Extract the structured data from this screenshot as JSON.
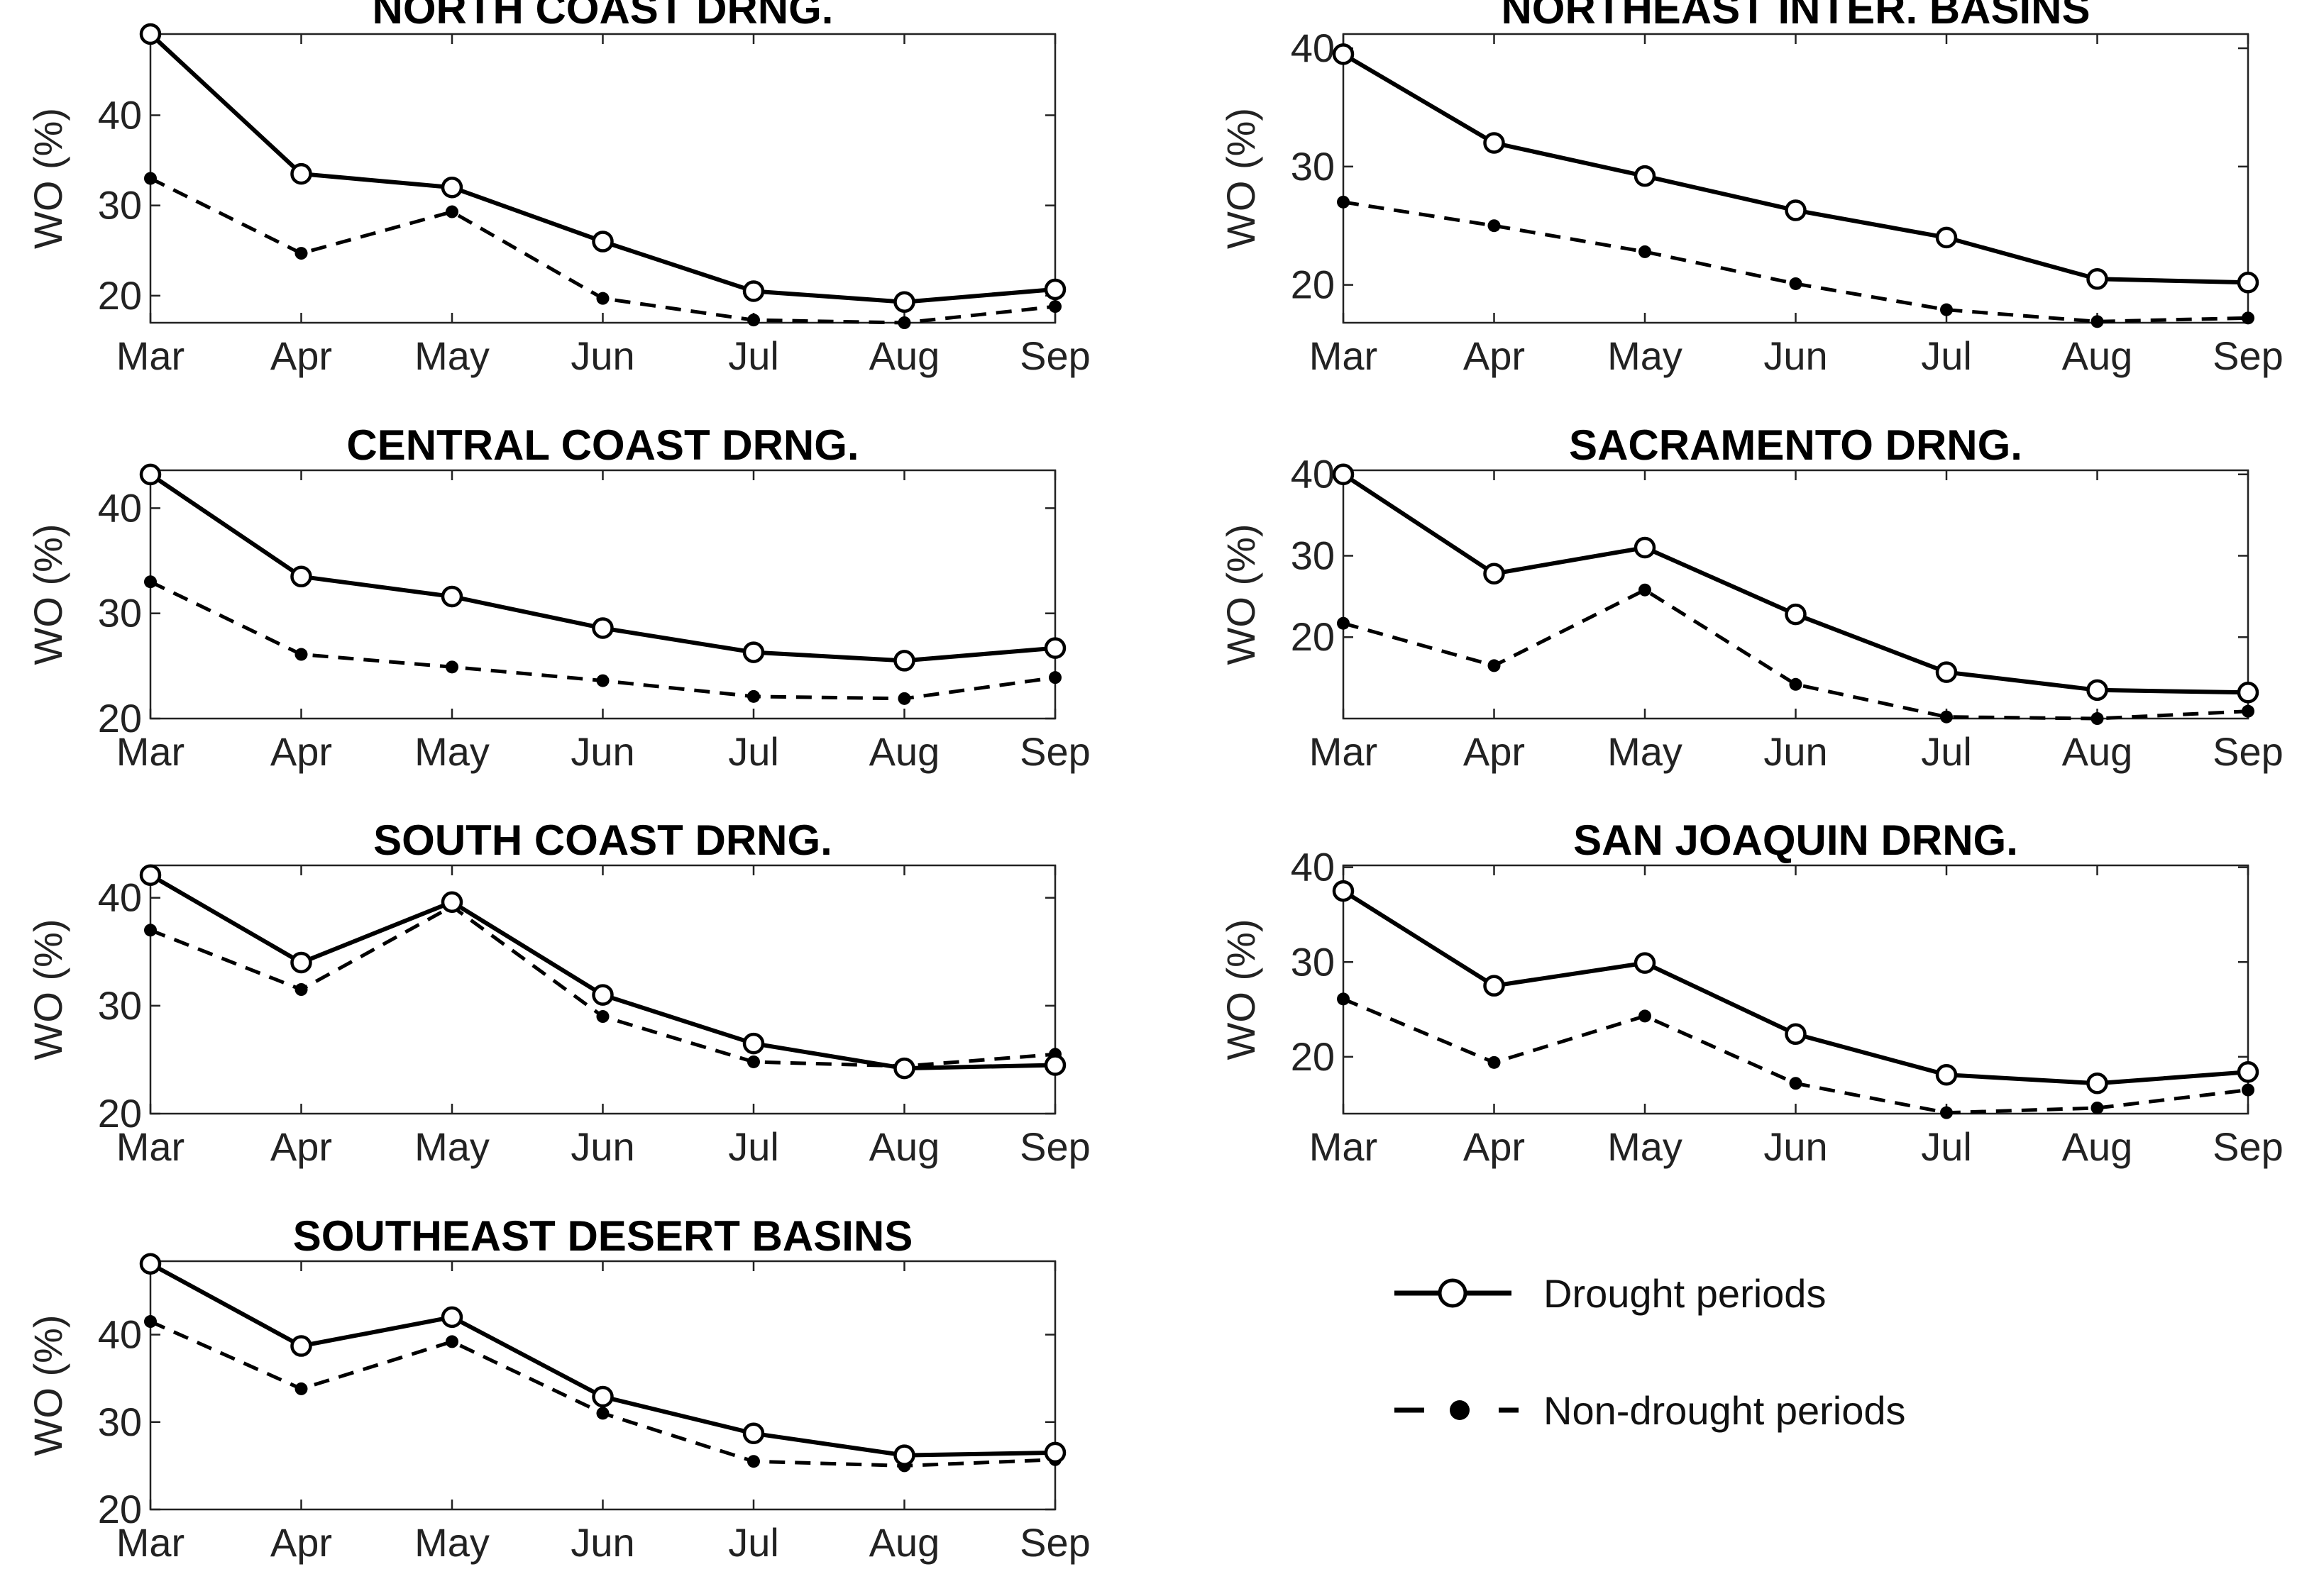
{
  "chart_data": [
    {
      "type": "line",
      "title": "NORTH COAST DRNG.",
      "categories": [
        "Mar",
        "Apr",
        "May",
        "Jun",
        "Jul",
        "Aug",
        "Sep"
      ],
      "ylabel": "WO (%)",
      "ylim": [
        17,
        49
      ],
      "yticks": [
        20,
        30,
        40
      ],
      "series": [
        {
          "name": "Drought periods",
          "values": [
            49,
            33.5,
            32,
            26,
            20.5,
            19.3,
            20.7
          ]
        },
        {
          "name": "Non-drought periods",
          "values": [
            33,
            24.7,
            29.3,
            19.7,
            17.3,
            17,
            18.8
          ]
        }
      ]
    },
    {
      "type": "line",
      "title": "NORTHEAST INTER. BASINS",
      "categories": [
        "Mar",
        "Apr",
        "May",
        "Jun",
        "Jul",
        "Aug",
        "Sep"
      ],
      "ylabel": "WO (%)",
      "ylim": [
        16.8,
        41.2
      ],
      "yticks": [
        20,
        30,
        40
      ],
      "series": [
        {
          "name": "Drought periods",
          "values": [
            39.5,
            32,
            29.2,
            26.3,
            24,
            20.5,
            20.2
          ]
        },
        {
          "name": "Non-drought periods",
          "values": [
            27,
            25,
            22.8,
            20.1,
            17.9,
            16.9,
            17.2
          ]
        }
      ]
    },
    {
      "type": "line",
      "title": "CENTRAL COAST DRNG.",
      "categories": [
        "Mar",
        "Apr",
        "May",
        "Jun",
        "Jul",
        "Aug",
        "Sep"
      ],
      "ylabel": "WO (%)",
      "ylim": [
        20,
        43.6
      ],
      "yticks": [
        20,
        30,
        40
      ],
      "series": [
        {
          "name": "Drought periods",
          "values": [
            43.2,
            33.5,
            31.6,
            28.6,
            26.3,
            25.5,
            26.7
          ]
        },
        {
          "name": "Non-drought periods",
          "values": [
            33,
            26.1,
            24.9,
            23.6,
            22.1,
            21.9,
            23.9
          ]
        }
      ]
    },
    {
      "type": "line",
      "title": "SACRAMENTO DRNG.",
      "categories": [
        "Mar",
        "Apr",
        "May",
        "Jun",
        "Jul",
        "Aug",
        "Sep"
      ],
      "ylabel": "WO (%)",
      "ylim": [
        10,
        40.5
      ],
      "yticks": [
        20,
        30,
        40
      ],
      "series": [
        {
          "name": "Drought periods",
          "values": [
            40,
            27.8,
            31,
            22.8,
            15.7,
            13.5,
            13.2
          ]
        },
        {
          "name": "Non-drought periods",
          "values": [
            21.7,
            16.5,
            25.8,
            14.2,
            10.2,
            10,
            10.9
          ]
        }
      ]
    },
    {
      "type": "line",
      "title": "SOUTH COAST DRNG.",
      "categories": [
        "Mar",
        "Apr",
        "May",
        "Jun",
        "Jul",
        "Aug",
        "Sep"
      ],
      "ylabel": "WO (%)",
      "ylim": [
        20,
        43
      ],
      "yticks": [
        20,
        30,
        40
      ],
      "series": [
        {
          "name": "Drought periods",
          "values": [
            42.1,
            34,
            39.6,
            31,
            26.5,
            24.2,
            24.5
          ]
        },
        {
          "name": "Non-drought periods",
          "values": [
            37,
            31.5,
            39.2,
            29,
            24.8,
            24.4,
            25.5
          ]
        }
      ]
    },
    {
      "type": "line",
      "title": "SAN JOAQUIN DRNG.",
      "categories": [
        "Mar",
        "Apr",
        "May",
        "Jun",
        "Jul",
        "Aug",
        "Sep"
      ],
      "ylabel": "WO (%)",
      "ylim": [
        14,
        40.2
      ],
      "yticks": [
        20,
        30,
        40
      ],
      "series": [
        {
          "name": "Drought periods",
          "values": [
            37.5,
            27.5,
            29.9,
            22.4,
            18.1,
            17.2,
            18.4
          ]
        },
        {
          "name": "Non-drought periods",
          "values": [
            26.1,
            19.4,
            24.3,
            17.2,
            14.1,
            14.6,
            16.5
          ]
        }
      ]
    },
    {
      "type": "line",
      "title": "SOUTHEAST DESERT BASINS",
      "categories": [
        "Mar",
        "Apr",
        "May",
        "Jun",
        "Jul",
        "Aug",
        "Sep"
      ],
      "ylabel": "WO (%)",
      "ylim": [
        20,
        48.4
      ],
      "yticks": [
        20,
        30,
        40
      ],
      "series": [
        {
          "name": "Drought periods",
          "values": [
            48.1,
            38.7,
            42,
            32.9,
            28.7,
            26.2,
            26.5
          ]
        },
        {
          "name": "Non-drought periods",
          "values": [
            41.5,
            33.8,
            39.2,
            31,
            25.5,
            25,
            25.7
          ]
        }
      ]
    }
  ],
  "legend": {
    "drought_label": "Drought periods",
    "non_drought_label": "Non-drought periods"
  }
}
